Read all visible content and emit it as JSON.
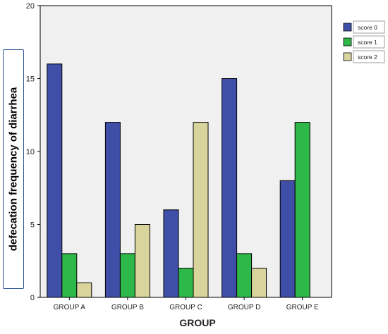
{
  "chart_data": {
    "type": "bar",
    "title": "",
    "xlabel": "GROUP",
    "ylabel": "defecation frequency of diarrhea",
    "categories": [
      "GROUP A",
      "GROUP B",
      "GROUP C",
      "GROUP D",
      "GROUP E"
    ],
    "series": [
      {
        "name": "score 0",
        "color": "#3f4fa8",
        "values": [
          16,
          12,
          6,
          15,
          8
        ]
      },
      {
        "name": "score 1",
        "color": "#2fb84a",
        "values": [
          3,
          3,
          2,
          3,
          12
        ]
      },
      {
        "name": "score 2",
        "color": "#d8d49c",
        "values": [
          1,
          5,
          12,
          2,
          0
        ]
      }
    ],
    "ylim": [
      0,
      20
    ],
    "yticks": [
      0,
      5,
      10,
      15,
      20
    ],
    "grid": false,
    "legend_position": "top-right",
    "plot_background": "#f0f0f0"
  }
}
